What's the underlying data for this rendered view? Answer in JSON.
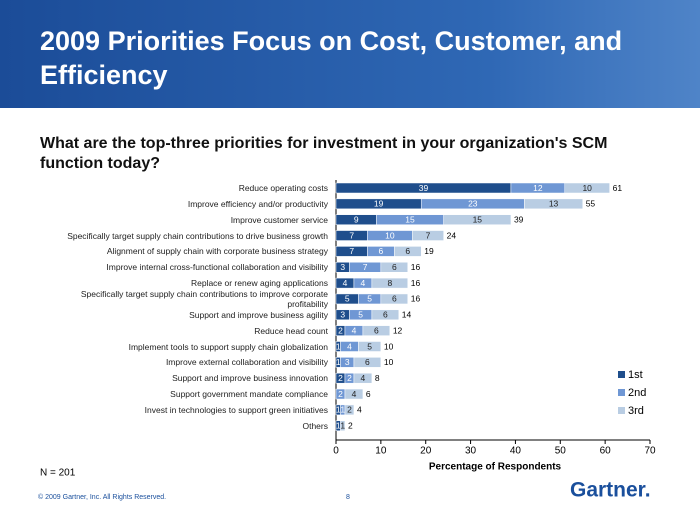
{
  "header": {
    "title": "2009 Priorities Focus on Cost, Customer, and Efficiency"
  },
  "chart_data": {
    "type": "bar",
    "orientation": "horizontal",
    "stacked": true,
    "title": "What are the top-three priorities for investment in your organization's SCM function today?",
    "categories": [
      "Reduce operating costs",
      "Improve efficiency and/or productivity",
      "Improve customer service",
      "Specifically target supply chain contributions to drive business growth",
      "Alignment of supply chain with corporate business strategy",
      "Improve internal cross-functional collaboration and visibility",
      "Replace or renew aging applications",
      "Specifically target supply chain contributions to improve corporate profitability",
      "Support and improve business agility",
      "Reduce head count",
      "Implement tools to support supply chain globalization",
      "Improve external collaboration and visibility",
      "Support and improve business innovation",
      "Support government mandate compliance",
      "Invest in technologies to support green initiatives",
      "Others"
    ],
    "series": [
      {
        "name": "1st",
        "color": "#1f4e8c",
        "values": [
          39,
          19,
          9,
          7,
          7,
          3,
          4,
          5,
          3,
          2,
          1,
          1,
          2,
          0,
          1,
          1
        ]
      },
      {
        "name": "2nd",
        "color": "#6f97d4",
        "values": [
          12,
          23,
          15,
          10,
          6,
          7,
          4,
          5,
          5,
          4,
          4,
          3,
          2,
          2,
          1,
          0
        ]
      },
      {
        "name": "3rd",
        "color": "#b9cde3",
        "values": [
          10,
          13,
          15,
          7,
          6,
          6,
          8,
          6,
          6,
          6,
          5,
          6,
          4,
          4,
          2,
          1
        ]
      }
    ],
    "totals": [
      61,
      55,
      39,
      24,
      19,
      16,
      16,
      16,
      14,
      12,
      10,
      10,
      8,
      6,
      4,
      2
    ],
    "xlim": [
      0,
      70
    ],
    "xticks": [
      0,
      10,
      20,
      30,
      40,
      50,
      60,
      70
    ],
    "xlabel": "Percentage of Respondents",
    "legend": "right",
    "annotation": "N = 201"
  },
  "footer": {
    "copyright": "© 2009 Gartner, Inc. All Rights Reserved.",
    "page": "8",
    "logo": "Gartner."
  }
}
